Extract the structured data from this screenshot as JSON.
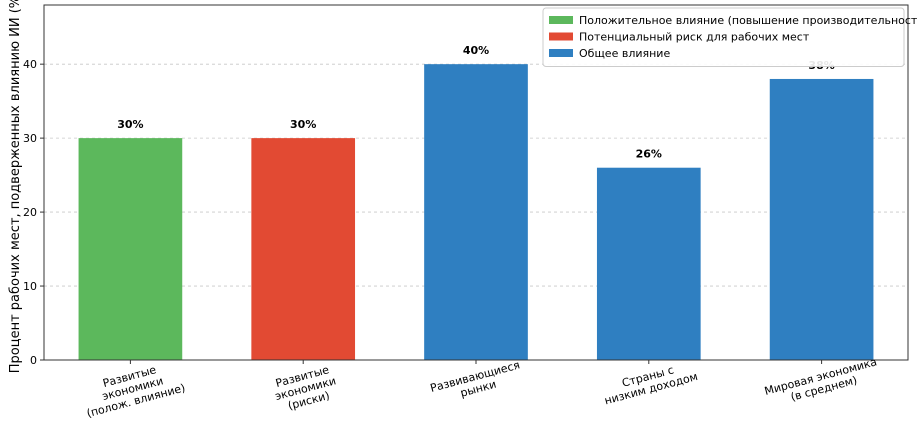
{
  "chart_data": {
    "type": "bar",
    "title": "",
    "xlabel": "",
    "ylabel": "Процент рабочих мест, подверженных влиянию ИИ (%)",
    "ylim": [
      0,
      48
    ],
    "yticks": [
      0,
      10,
      20,
      30,
      40
    ],
    "grid": "horizontal dashed",
    "categories": [
      [
        "Развитые",
        "экономики",
        "(полож. влияние)"
      ],
      [
        "Развитые",
        "экономики",
        "(риски)"
      ],
      [
        "Развивающиеся",
        "рынки"
      ],
      [
        "Страны с",
        "низким доходом"
      ],
      [
        "Мировая экономика",
        "(в среднем)"
      ]
    ],
    "values": [
      30,
      30,
      40,
      26,
      38
    ],
    "value_labels": [
      "30%",
      "30%",
      "40%",
      "26%",
      "38%"
    ],
    "bar_colors": [
      "#5cb85c",
      "#e24a33",
      "#2f7fc1",
      "#2f7fc1",
      "#2f7fc1"
    ],
    "legend": {
      "placement": "top-right",
      "entries": [
        {
          "label": "Положительное влияние (повышение производительности)",
          "color": "#5cb85c"
        },
        {
          "label": "Потенциальный риск для рабочих мест",
          "color": "#e24a33"
        },
        {
          "label": "Общее влияние",
          "color": "#2f7fc1"
        }
      ]
    }
  }
}
